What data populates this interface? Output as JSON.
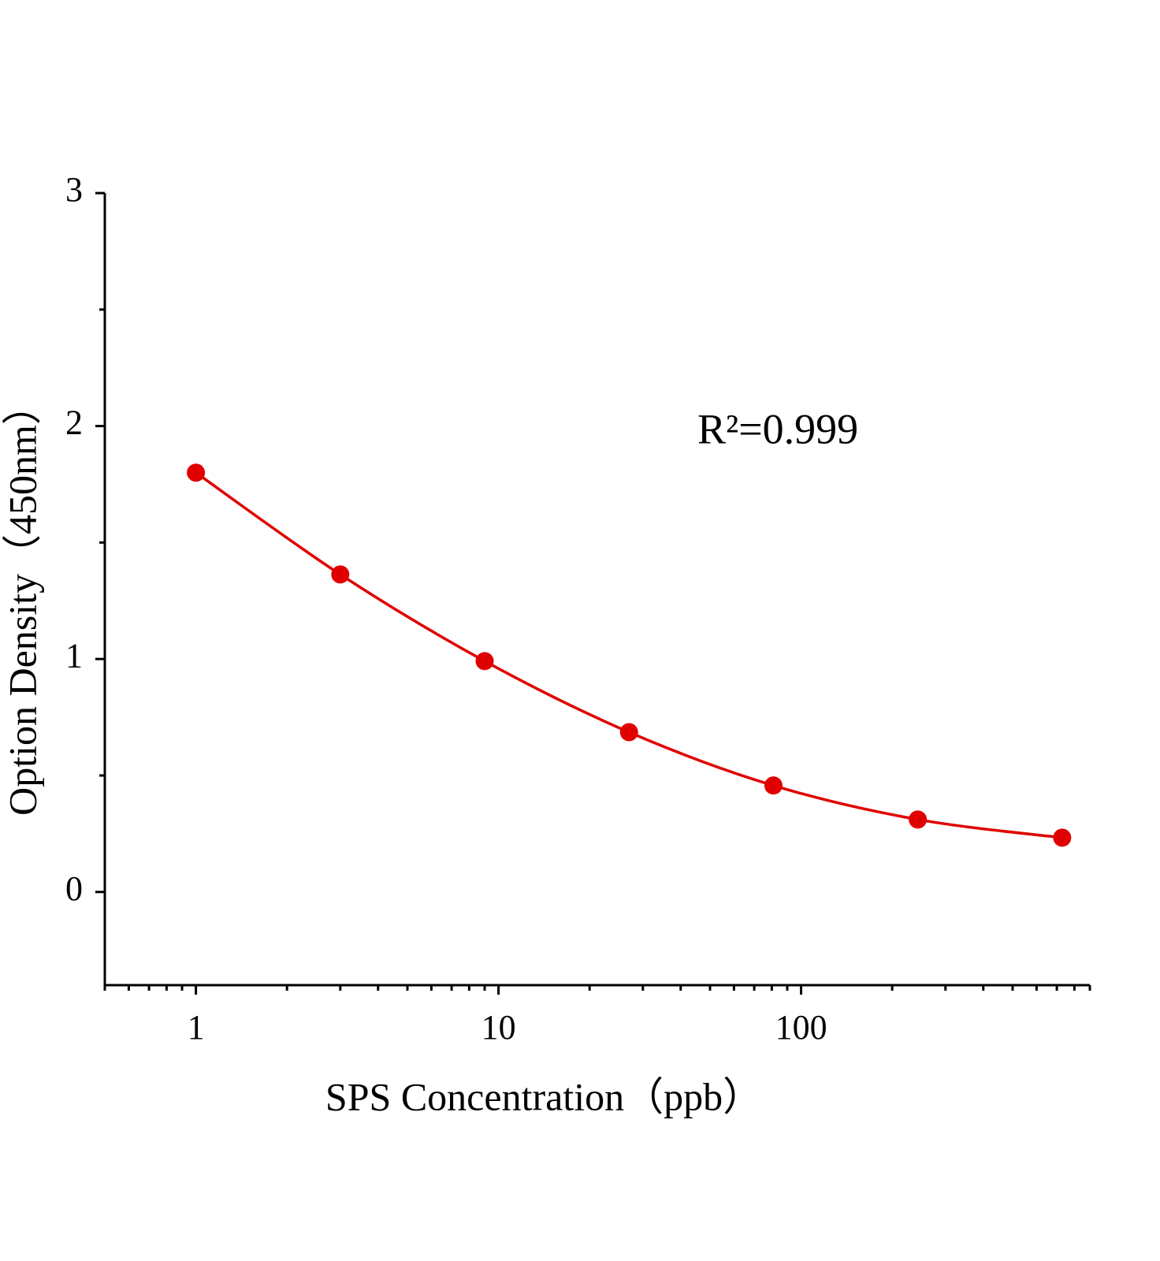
{
  "chart_data": {
    "type": "line",
    "xlabel": "SPS Concentration（ppb）",
    "ylabel": "Option Density（450nm）",
    "annotation": "R²=0.999",
    "x": [
      1,
      3,
      9,
      27,
      81,
      243,
      729
    ],
    "values": [
      1.8,
      1.363,
      0.991,
      0.686,
      0.457,
      0.311,
      0.233
    ],
    "color": "#e00000",
    "xscale": "log",
    "xlim": [
      0.5,
      900
    ],
    "xticks": [
      1,
      10,
      100
    ],
    "ylim": [
      -0.4,
      3
    ],
    "yticks": [
      0,
      1,
      2,
      3
    ],
    "minor_ticks": true,
    "markers": true,
    "grid": false
  }
}
